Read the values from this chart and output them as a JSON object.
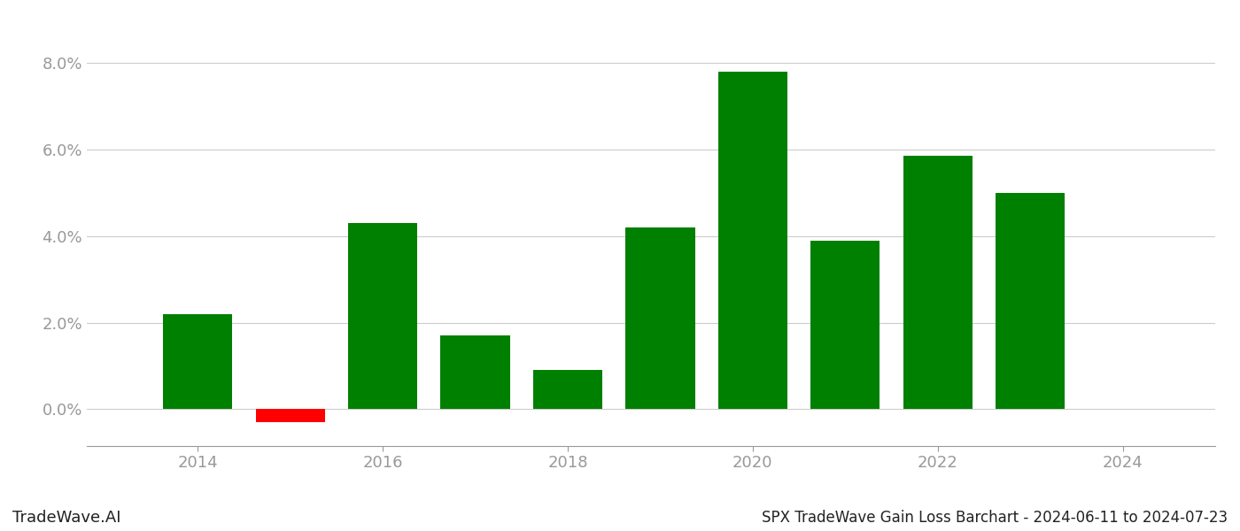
{
  "years": [
    2014,
    2015,
    2016,
    2017,
    2018,
    2019,
    2020,
    2021,
    2022,
    2023
  ],
  "values": [
    0.022,
    -0.003,
    0.043,
    0.017,
    0.009,
    0.042,
    0.078,
    0.039,
    0.0585,
    0.05
  ],
  "positive_color": "#008000",
  "negative_color": "#ff0000",
  "background_color": "#ffffff",
  "grid_color": "#cccccc",
  "axis_label_color": "#999999",
  "title_text": "SPX TradeWave Gain Loss Barchart - 2024-06-11 to 2024-07-23",
  "watermark_text": "TradeWave.AI",
  "xtick_labels": [
    "2014",
    "2016",
    "2018",
    "2020",
    "2022",
    "2024"
  ],
  "xtick_positions": [
    2014,
    2016,
    2018,
    2020,
    2022,
    2024
  ],
  "ylim_min": -0.0085,
  "ylim_max": 0.086,
  "ytick_values": [
    0.0,
    0.02,
    0.04,
    0.06,
    0.08
  ],
  "bar_width": 0.75,
  "title_fontsize": 12,
  "watermark_fontsize": 13,
  "tick_fontsize": 13,
  "xlim_min": 2012.8,
  "xlim_max": 2025.0
}
